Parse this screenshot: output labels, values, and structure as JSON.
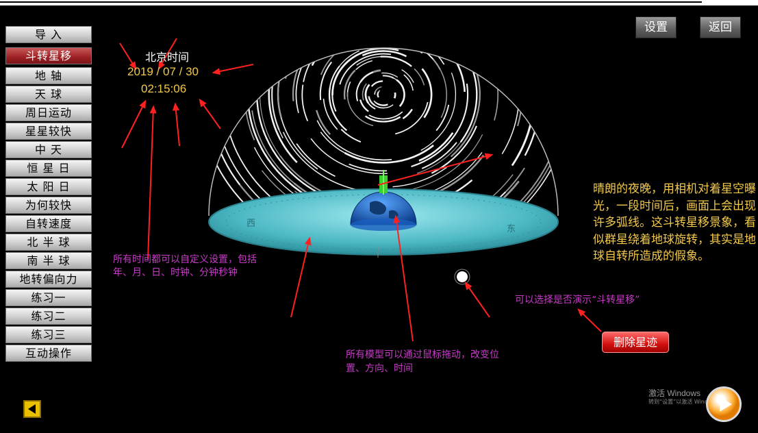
{
  "sidebar": {
    "items": [
      {
        "label": "导  入"
      },
      {
        "label": "斗转星移",
        "active": true
      },
      {
        "label": "地  轴"
      },
      {
        "label": "天  球"
      },
      {
        "label": "周日运动"
      },
      {
        "label": "星星较快"
      },
      {
        "label": "中  天"
      },
      {
        "label": "恒 星 日"
      },
      {
        "label": "太 阳 日"
      },
      {
        "label": "为何较快"
      },
      {
        "label": "自转速度"
      },
      {
        "label": "北 半 球"
      },
      {
        "label": "南 半 球"
      },
      {
        "label": "地转偏向力"
      },
      {
        "label": "练习一"
      },
      {
        "label": "练习二"
      },
      {
        "label": "练习三"
      },
      {
        "label": "互动操作"
      }
    ]
  },
  "topbar": {
    "settings_label": "设置",
    "back_label": "返回"
  },
  "clock": {
    "title": "北京时间",
    "date": "2019 / 07 / 30",
    "time": "02:15:06"
  },
  "annotations": {
    "time_note": "所有时间都可以自定义设置，包括年、月、日、时钟、分钟秒钟",
    "drag_note": "所有模型可以通过鼠标拖动，改变位置、方向、时间",
    "star_toggle_note": "可以选择是否演示“斗转星移”"
  },
  "description": "晴朗的夜晚，用相机对着星空曝光，一段时间后，画面上会出现许多弧线。这斗转星移景象，看似群星绕着地球旋转，其实是地球自转所造成的假象。",
  "delete_trails_label": "删除星迹",
  "disc_labels": {
    "west": "西",
    "east": "东"
  },
  "watermark": {
    "line1": "激活 Windows",
    "line2": "转到“设置”以激活 Windows。"
  },
  "colors": {
    "annotation": "#c83ac8",
    "clock": "#f2c94c",
    "active_item": "#9c2024",
    "arrow": "#ff2020",
    "disc": "#5cc7d0"
  },
  "icons": {
    "prev": "triangle-left-icon",
    "play": "play-circle-icon"
  }
}
